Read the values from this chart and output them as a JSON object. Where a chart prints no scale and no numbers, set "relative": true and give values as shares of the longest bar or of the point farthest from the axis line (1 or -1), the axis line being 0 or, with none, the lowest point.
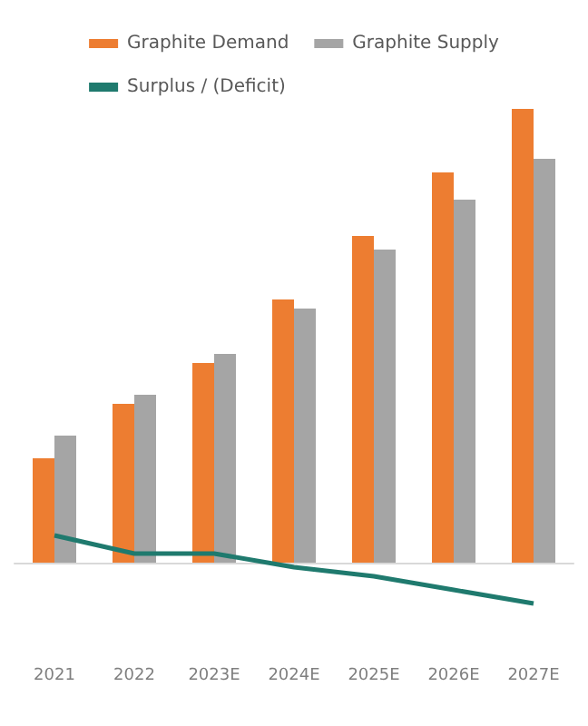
{
  "chart_data": {
    "type": "bar",
    "relative": true,
    "legend": "top",
    "categories": [
      "2021",
      "2022",
      "2023E",
      "2024E",
      "2025E",
      "2026E",
      "2027E"
    ],
    "series": [
      {
        "name": "Graphite Demand",
        "color": "#ed7d31",
        "values": [
          0.23,
          0.35,
          0.44,
          0.58,
          0.72,
          0.86,
          1.0
        ]
      },
      {
        "name": "Graphite Supply",
        "color": "#a5a5a5",
        "values": [
          0.28,
          0.37,
          0.46,
          0.56,
          0.69,
          0.8,
          0.89
        ]
      },
      {
        "name": "Surplus / (Deficit)",
        "type": "line",
        "color": "#1f7a6e",
        "marker": "none",
        "values": [
          0.06,
          0.02,
          0.02,
          -0.01,
          -0.03,
          -0.06,
          -0.09
        ]
      }
    ]
  }
}
